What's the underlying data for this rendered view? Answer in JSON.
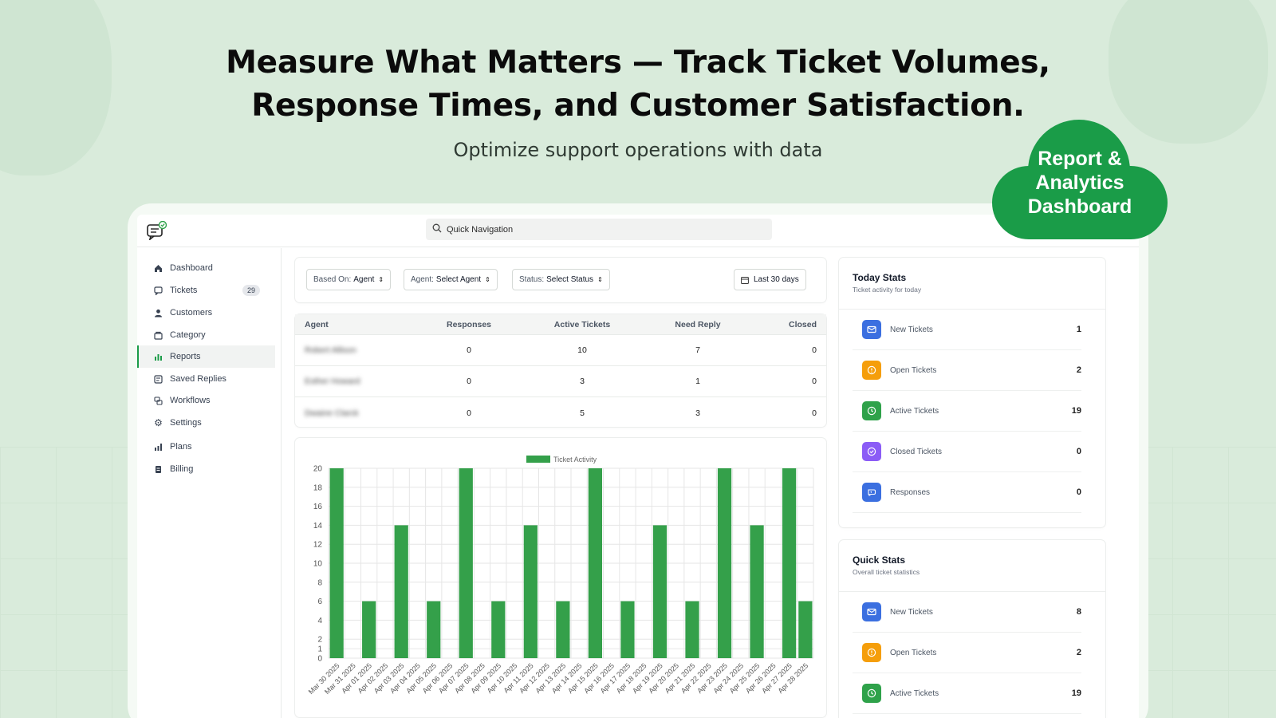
{
  "hero": {
    "title_line1": "Measure What Matters — Track Ticket Volumes,",
    "title_line2": "Response Times, and Customer Satisfaction.",
    "subtitle": "Optimize support operations with data"
  },
  "badge": {
    "line1": "Report &",
    "line2": "Analytics",
    "line3": "Dashboard",
    "color": "#1a9c48"
  },
  "search": {
    "placeholder": "Quick Navigation"
  },
  "sidebar": {
    "items": [
      {
        "label": "Dashboard",
        "icon": "home-icon"
      },
      {
        "label": "Tickets",
        "icon": "chat-icon",
        "count": "29"
      },
      {
        "label": "Customers",
        "icon": "user-icon"
      },
      {
        "label": "Category",
        "icon": "folder-icon"
      },
      {
        "label": "Reports",
        "icon": "bar-chart-icon",
        "active": true
      },
      {
        "label": "Saved Replies",
        "icon": "saved-reply-icon"
      },
      {
        "label": "Workflows",
        "icon": "workflow-icon"
      },
      {
        "label": "Settings",
        "icon": "gear-icon"
      },
      {
        "label": "Plans",
        "icon": "plans-icon"
      },
      {
        "label": "Billing",
        "icon": "billing-icon"
      }
    ]
  },
  "filters": {
    "based_on_label": "Based On:",
    "based_on_value": "Agent",
    "agent_label": "Agent:",
    "agent_value": "Select Agent",
    "status_label": "Status:",
    "status_value": "Select Status",
    "date_range": "Last 30 days"
  },
  "agents_table": {
    "headers": [
      "Agent",
      "Responses",
      "Active Tickets",
      "Need Reply",
      "Closed"
    ],
    "rows": [
      [
        "Robert Allison",
        "0",
        "10",
        "7",
        "0"
      ],
      [
        "Esther Howard",
        "0",
        "3",
        "1",
        "0"
      ],
      [
        "Dwaine Clarck",
        "0",
        "5",
        "3",
        "0"
      ]
    ]
  },
  "chart_data": {
    "type": "bar",
    "title": "",
    "xlabel": "",
    "ylabel": "",
    "ylim": [
      0,
      20
    ],
    "yticks": [
      0,
      1,
      2,
      4,
      6,
      8,
      10,
      12,
      14,
      16,
      18,
      20
    ],
    "legend": "top",
    "grid": true,
    "color": "#34a04a",
    "categories": [
      "Mar 30 2025",
      "Mar 31 2025",
      "Apr 01 2025",
      "Apr 02 2025",
      "Apr 03 2025",
      "Apr 04 2025",
      "Apr 05 2025",
      "Apr 06 2025",
      "Apr 07 2025",
      "Apr 08 2025",
      "Apr 09 2025",
      "Apr 10 2025",
      "Apr 11 2025",
      "Apr 12 2025",
      "Apr 13 2025",
      "Apr 14 2025",
      "Apr 15 2025",
      "Apr 16 2025",
      "Apr 17 2025",
      "Apr 18 2025",
      "Apr 19 2025",
      "Apr 20 2025",
      "Apr 21 2025",
      "Apr 22 2025",
      "Apr 23 2025",
      "Apr 24 2025",
      "Apr 25 2025",
      "Apr 26 2025",
      "Apr 27 2025",
      "Apr 28 2025"
    ],
    "series": [
      {
        "name": "Ticket Activity",
        "values": [
          20,
          0,
          6,
          0,
          14,
          0,
          6,
          0,
          20,
          0,
          6,
          0,
          14,
          0,
          6,
          0,
          20,
          0,
          6,
          0,
          14,
          0,
          6,
          0,
          20,
          0,
          14,
          0,
          20,
          6
        ]
      }
    ]
  },
  "today_stats": {
    "title": "Today Stats",
    "subtitle": "Ticket activity for today",
    "items": [
      {
        "label": "New Tickets",
        "value": "1",
        "icon": "mail-icon",
        "color": "#3b6fe0"
      },
      {
        "label": "Open Tickets",
        "value": "2",
        "icon": "alert-circle-icon",
        "color": "#f59e0b"
      },
      {
        "label": "Active Tickets",
        "value": "19",
        "icon": "clock-icon",
        "color": "#2fa24a"
      },
      {
        "label": "Closed Tickets",
        "value": "0",
        "icon": "check-circle-icon",
        "color": "#8b5cf6"
      },
      {
        "label": "Responses",
        "value": "0",
        "icon": "reply-icon",
        "color": "#3b6fe0"
      }
    ]
  },
  "quick_stats": {
    "title": "Quick Stats",
    "subtitle": "Overall ticket statistics",
    "items": [
      {
        "label": "New Tickets",
        "value": "8",
        "icon": "mail-icon",
        "color": "#3b6fe0"
      },
      {
        "label": "Open Tickets",
        "value": "2",
        "icon": "alert-circle-icon",
        "color": "#f59e0b"
      },
      {
        "label": "Active Tickets",
        "value": "19",
        "icon": "clock-icon",
        "color": "#2fa24a"
      }
    ]
  }
}
